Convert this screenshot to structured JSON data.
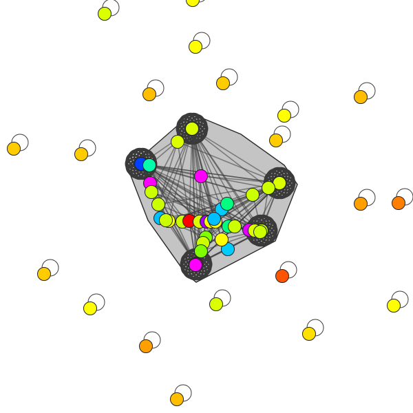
{
  "diagram": {
    "type": "network-graph",
    "background": "#ffffff",
    "hull_fill": "#c4c4c4",
    "edge_color": "#3d3d3d",
    "isolated_nodes": [
      {
        "color": "#dcff00"
      },
      {
        "color": "#ffff00"
      },
      {
        "color": "#ffbf00"
      },
      {
        "color": "#ffcc00"
      },
      {
        "color": "#ffbf00"
      },
      {
        "color": "#ffff00"
      },
      {
        "color": "#ffcc00"
      },
      {
        "color": "#ffcc00"
      },
      {
        "color": "#ffcc00"
      },
      {
        "color": "#ff9f00"
      },
      {
        "color": "#ff8000"
      },
      {
        "color": "#ffcc00"
      },
      {
        "color": "#ffff00"
      },
      {
        "color": "#ff5500"
      },
      {
        "color": "#ffff00"
      },
      {
        "color": "#dcff00"
      },
      {
        "color": "#ffe000"
      },
      {
        "color": "#ff9f00"
      },
      {
        "color": "#ffbf00"
      },
      {
        "color": "#ffff00"
      }
    ],
    "hubs": [
      {
        "color": "#dcff00"
      },
      {
        "color": "#0040ff"
      },
      {
        "color": "#dcff00"
      },
      {
        "color": "#ccff00"
      },
      {
        "color": "#ff00d0"
      }
    ],
    "cluster_nodes": [
      {
        "color": "#dcff00"
      },
      {
        "color": "#ff00ff"
      },
      {
        "color": "#00ffaa"
      },
      {
        "color": "#ccff00"
      },
      {
        "color": "#ccff00"
      },
      {
        "color": "#00bfff"
      },
      {
        "color": "#ffff00"
      },
      {
        "color": "#ccff00"
      },
      {
        "color": "#ff0000"
      },
      {
        "color": "#dcff00"
      },
      {
        "color": "#aa00ff"
      },
      {
        "color": "#ffff00"
      },
      {
        "color": "#ffff00"
      },
      {
        "color": "#00ff80"
      },
      {
        "color": "#ccff00"
      },
      {
        "color": "#e000ff"
      },
      {
        "color": "#ff00ff"
      },
      {
        "color": "#ccff00"
      },
      {
        "color": "#00ccff"
      },
      {
        "color": "#00ff80"
      },
      {
        "color": "#80ff00"
      },
      {
        "color": "#00ccff"
      },
      {
        "color": "#ffff00"
      },
      {
        "color": "#ccff00"
      },
      {
        "color": "#00bfff"
      },
      {
        "color": "#ccff00"
      },
      {
        "color": "#ff00ff"
      },
      {
        "color": "#dcff00"
      },
      {
        "color": "#80ff00"
      },
      {
        "color": "#ccff00"
      },
      {
        "color": "#ccff00"
      }
    ]
  }
}
